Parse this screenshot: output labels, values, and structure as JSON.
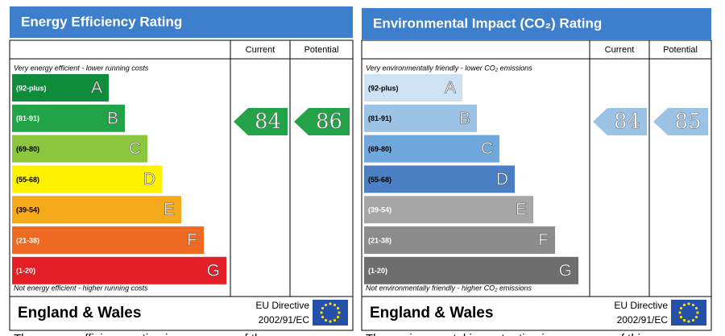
{
  "panels": [
    {
      "title": "Energy Efficiency Rating",
      "columns": [
        "Current",
        "Potential"
      ],
      "top_note": "Very energy efficient - lower running costs",
      "bottom_note": "Not energy efficient - higher running costs",
      "bands": [
        {
          "range": "(92-plus)",
          "letter": "A",
          "color": "#0f8c3b",
          "ink": "#fff"
        },
        {
          "range": "(81-91)",
          "letter": "B",
          "color": "#23a347",
          "ink": "#fff"
        },
        {
          "range": "(69-80)",
          "letter": "C",
          "color": "#8cc63e",
          "ink": "#000"
        },
        {
          "range": "(55-68)",
          "letter": "D",
          "color": "#fff200",
          "ink": "#000"
        },
        {
          "range": "(39-54)",
          "letter": "E",
          "color": "#f7a91c",
          "ink": "#000"
        },
        {
          "range": "(21-38)",
          "letter": "F",
          "color": "#ee6a23",
          "ink": "#fff"
        },
        {
          "range": "(1-20)",
          "letter": "G",
          "color": "#e31e24",
          "ink": "#fff"
        }
      ],
      "current": 84,
      "current_color": "#23a347",
      "potential": 86,
      "potential_color": "#23a347",
      "region": "England & Wales",
      "directive": "EU Directive",
      "directive_code": "2002/91/EC",
      "caption": "The energy efficiency rating is a measure of the"
    },
    {
      "title": "Environmental Impact (CO₂) Rating",
      "columns": [
        "Current",
        "Potential"
      ],
      "top_note": "Very environmentally friendly - lower CO₂ emissions",
      "bottom_note": "Not environmentally friendly - higher CO₂ emissions",
      "bands": [
        {
          "range": "(92-plus)",
          "letter": "A",
          "color": "#cfe2f3",
          "ink": "#000"
        },
        {
          "range": "(81-91)",
          "letter": "B",
          "color": "#9cc3e6",
          "ink": "#000"
        },
        {
          "range": "(69-80)",
          "letter": "C",
          "color": "#6fa8dc",
          "ink": "#000"
        },
        {
          "range": "(55-68)",
          "letter": "D",
          "color": "#4b7fc4",
          "ink": "#000"
        },
        {
          "range": "(39-54)",
          "letter": "E",
          "color": "#a6a6a6",
          "ink": "#fff"
        },
        {
          "range": "(21-38)",
          "letter": "F",
          "color": "#8c8c8c",
          "ink": "#fff"
        },
        {
          "range": "(1-20)",
          "letter": "G",
          "color": "#6e6e6e",
          "ink": "#fff"
        }
      ],
      "current": 84,
      "current_color": "#9cc3e6",
      "potential": 85,
      "potential_color": "#9cc3e6",
      "region": "England & Wales",
      "directive": "EU Directive",
      "directive_code": "2002/91/EC",
      "caption": "The environmental impact rating is a measure of this"
    }
  ]
}
